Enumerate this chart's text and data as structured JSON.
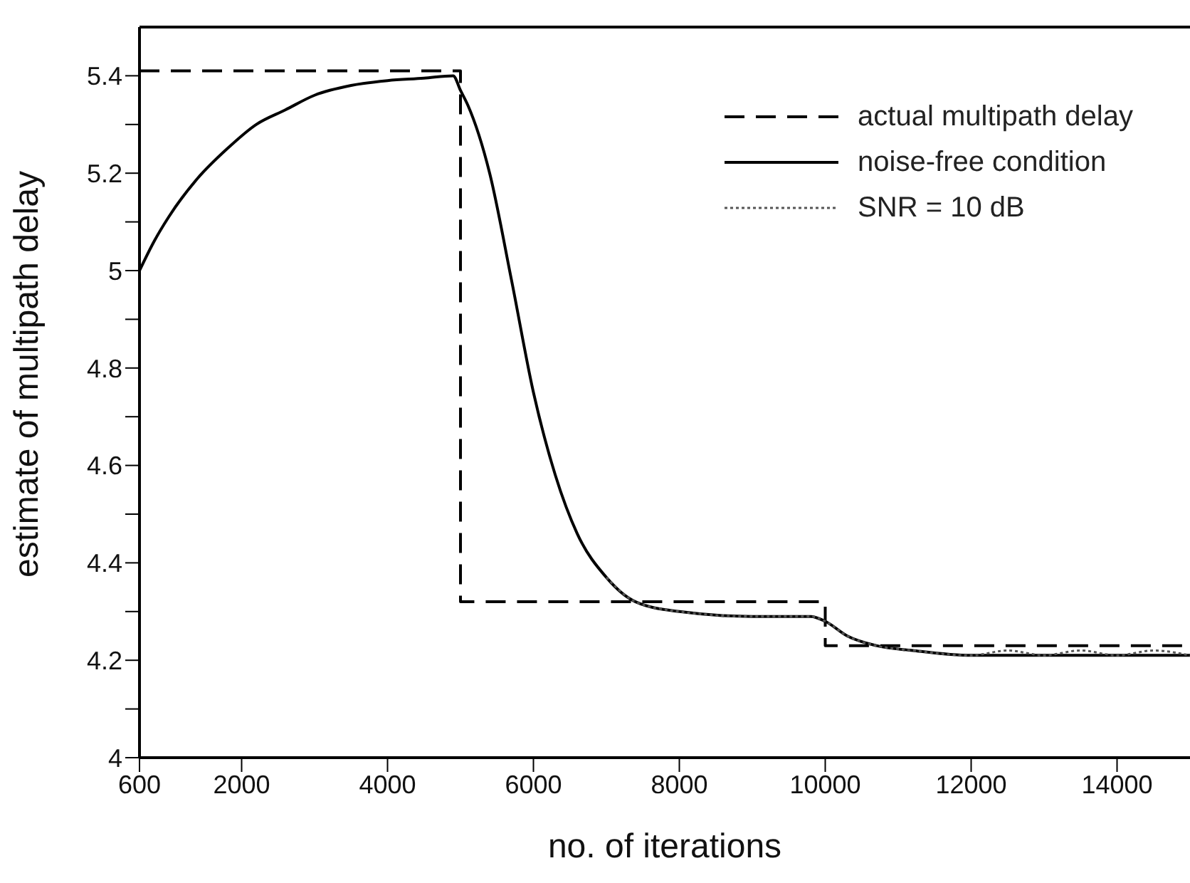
{
  "chart_data": {
    "type": "line",
    "xlabel": "no. of iterations",
    "ylabel": "estimate of multipath delay",
    "xlim": [
      600,
      15000
    ],
    "ylim": [
      4,
      5.5
    ],
    "xticks": [
      600,
      2000,
      4000,
      6000,
      8000,
      10000,
      12000,
      14000
    ],
    "yticks": [
      4,
      {
        "value": 4.1,
        "label": null
      },
      4.2,
      {
        "value": 4.3,
        "label": null
      },
      4.4,
      {
        "value": 4.5,
        "label": null
      },
      4.6,
      {
        "value": 4.7,
        "label": null
      },
      4.8,
      {
        "value": 4.9,
        "label": null
      },
      5,
      {
        "value": 5.1,
        "label": null
      },
      5.2,
      {
        "value": 5.3,
        "label": null
      },
      5.4
    ],
    "legend": "top right",
    "marker": "none",
    "series": [
      {
        "name": "actual multipath delay",
        "color": "#000000",
        "line_style": "dashed",
        "x": [
          600,
          5000,
          5000,
          10000,
          10000,
          15000
        ],
        "values": [
          5.41,
          5.41,
          4.32,
          4.32,
          4.23,
          4.23
        ]
      },
      {
        "name": "noise-free condition",
        "color": "#000000",
        "line_style": "solid",
        "x": [
          600,
          800,
          1000,
          1400,
          1800,
          2200,
          2600,
          3000,
          3500,
          4000,
          4500,
          4900,
          5000,
          5100,
          5400,
          5700,
          6000,
          6300,
          6600,
          7000,
          7400,
          8000,
          9000,
          9800,
          10000,
          10300,
          10700,
          11200,
          12000,
          13000,
          14000,
          15000
        ],
        "values": [
          5.0,
          5.06,
          5.11,
          5.19,
          5.25,
          5.3,
          5.33,
          5.36,
          5.38,
          5.39,
          5.395,
          5.4,
          5.37,
          5.34,
          5.2,
          4.98,
          4.75,
          4.58,
          4.46,
          4.37,
          4.32,
          4.3,
          4.29,
          4.29,
          4.28,
          4.25,
          4.23,
          4.22,
          4.21,
          4.21,
          4.21,
          4.21
        ]
      },
      {
        "name": "SNR = 10 dB",
        "color": "#555555",
        "line_style": "dotted",
        "x": [
          7000,
          7400,
          8000,
          9000,
          9800,
          10000,
          10300,
          10700,
          11200,
          12000,
          12500,
          13000,
          13500,
          14000,
          14500,
          15000
        ],
        "values": [
          4.37,
          4.32,
          4.3,
          4.29,
          4.29,
          4.28,
          4.25,
          4.23,
          4.22,
          4.21,
          4.22,
          4.21,
          4.22,
          4.21,
          4.22,
          4.21
        ]
      }
    ]
  }
}
